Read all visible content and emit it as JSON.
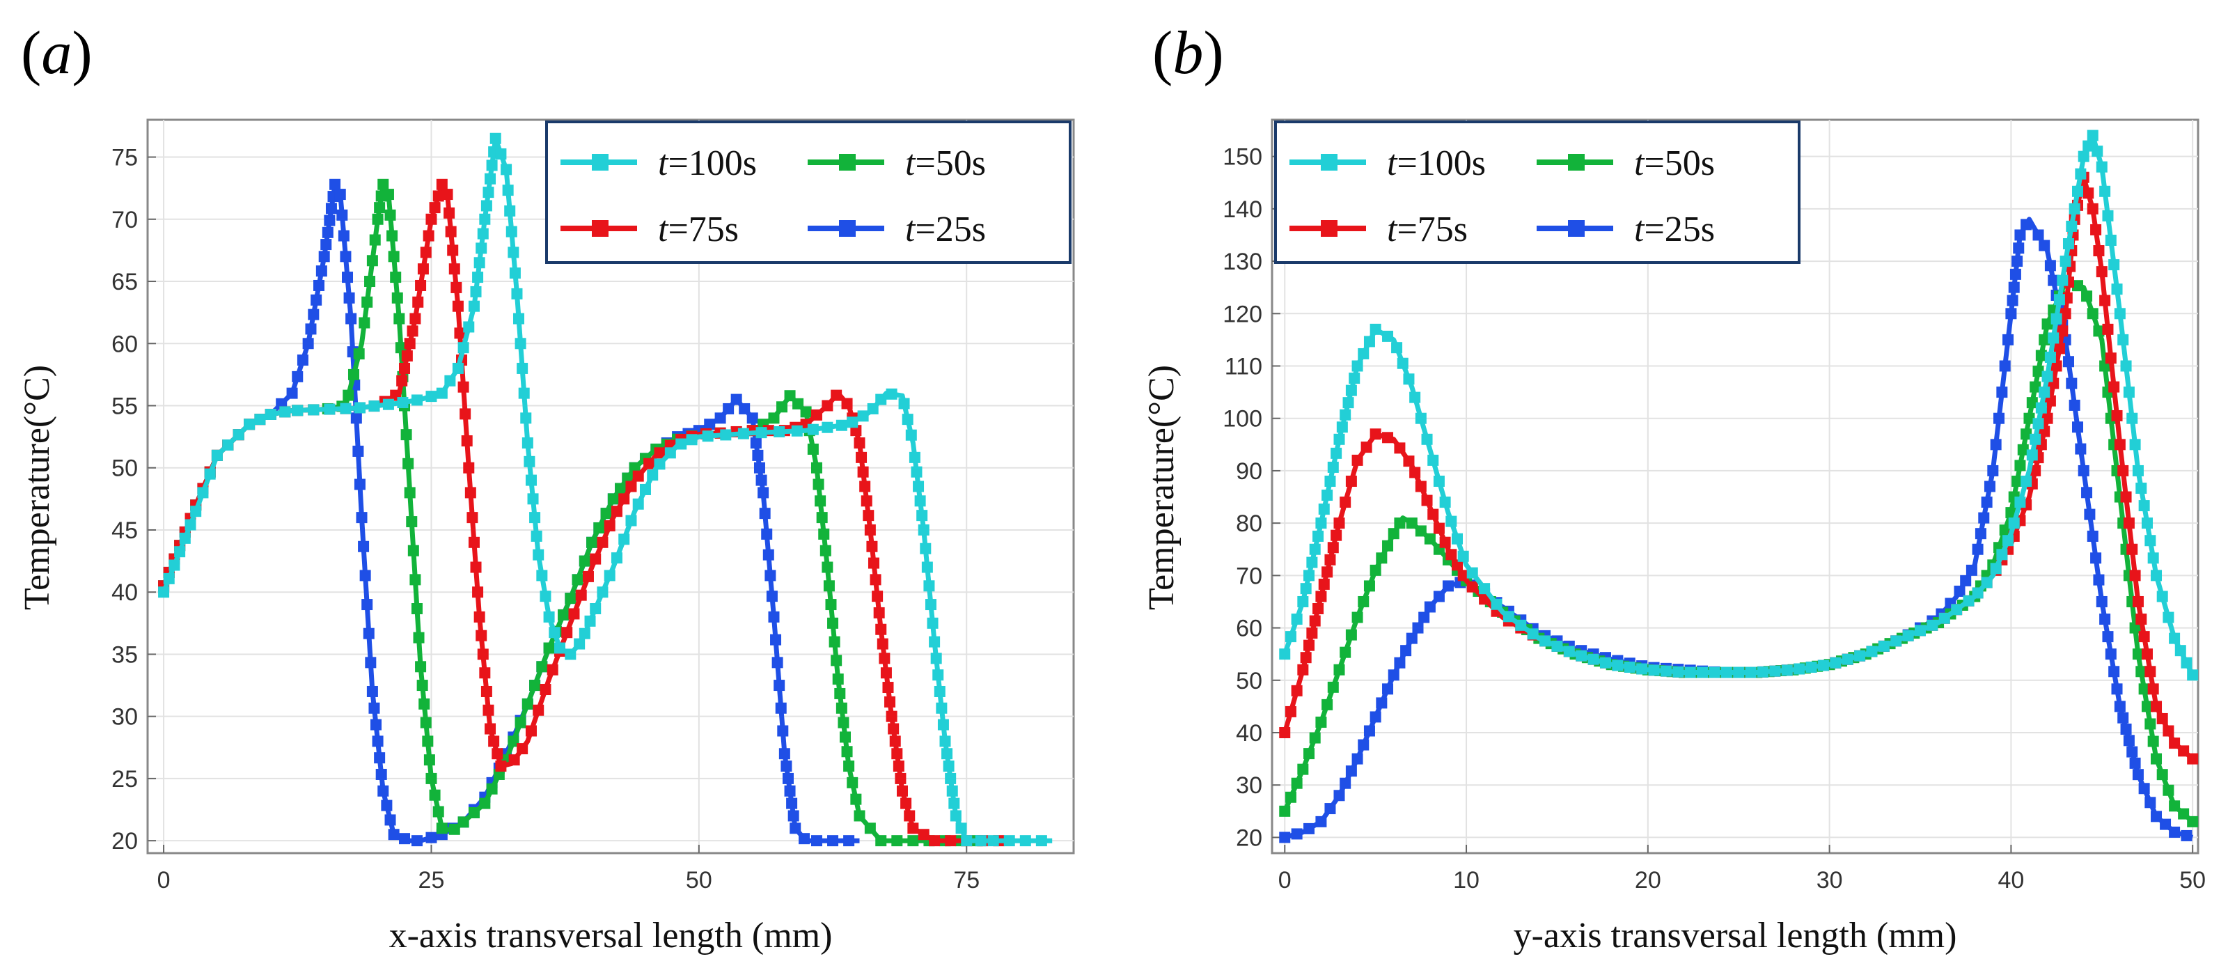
{
  "chart_data": [
    {
      "panel_label": "a",
      "type": "line",
      "xlabel": "x-axis transversal length (mm)",
      "ylabel": "Temperature(°C)",
      "xlim": [
        -1.5,
        85
      ],
      "ylim": [
        19,
        78
      ],
      "xticks": [
        0,
        25,
        50,
        75
      ],
      "yticks": [
        20,
        25,
        30,
        35,
        40,
        45,
        50,
        55,
        60,
        65,
        70,
        75
      ],
      "grid": true,
      "legend_position": "top-right",
      "legend_order": [
        "t=100s",
        "t=50s",
        "t=75s",
        "t=25s"
      ],
      "series": [
        {
          "name": "t=25s",
          "italic_prefix": "t",
          "suffix": "=25s",
          "color": "#1f4fe6",
          "x": [
            0,
            3,
            5,
            8,
            10,
            12,
            13.5,
            15,
            16,
            16.5,
            17.5,
            18.5,
            19.5,
            20.5,
            21.5,
            23,
            24,
            26,
            28,
            30,
            32,
            34,
            36,
            38,
            40,
            42,
            44,
            46,
            48,
            50,
            52,
            53.5,
            55,
            56,
            57,
            58,
            59,
            60,
            62,
            65
          ],
          "y": [
            40.5,
            47,
            51,
            53.5,
            54.3,
            56,
            60,
            67,
            72.8,
            72,
            62,
            46,
            32,
            24,
            20.5,
            20,
            20,
            20.5,
            21.5,
            23.5,
            27,
            31,
            35.5,
            39.5,
            44,
            47.5,
            50,
            51.5,
            52.5,
            53,
            54,
            55.5,
            54,
            48,
            38,
            27,
            21,
            20,
            20,
            20
          ]
        },
        {
          "name": "t=50s",
          "italic_prefix": "t",
          "suffix": "=50s",
          "color": "#12b33a",
          "x": [
            0,
            3,
            5,
            8,
            10,
            12,
            15,
            17,
            18.5,
            20,
            20.5,
            21,
            22,
            23,
            24,
            25,
            26,
            27,
            28,
            30,
            32,
            34,
            36,
            38,
            40,
            42,
            44,
            46,
            48,
            50,
            52,
            55,
            57,
            58.5,
            60,
            61,
            62,
            63,
            64,
            65,
            67,
            70,
            73,
            76
          ],
          "y": [
            40.5,
            47,
            51,
            53.5,
            54.3,
            54.6,
            54.7,
            55,
            60,
            70,
            72.8,
            72,
            62,
            48,
            34,
            25,
            21,
            20.8,
            21.5,
            23,
            26.5,
            31,
            35.5,
            39.5,
            44,
            47.5,
            50,
            51.5,
            52.3,
            52.7,
            52.8,
            53,
            54,
            55.8,
            54.5,
            50,
            42,
            33,
            26,
            22,
            20,
            20,
            20,
            20
          ]
        },
        {
          "name": "t=75s",
          "italic_prefix": "t",
          "suffix": "=75s",
          "color": "#e8141a",
          "x": [
            0,
            3,
            5,
            8,
            10,
            12,
            15,
            18,
            20,
            22,
            23.5,
            25,
            26,
            26.5,
            27.5,
            28.5,
            29.5,
            30.5,
            31.5,
            32.5,
            34,
            36,
            38,
            40,
            42,
            44,
            46,
            48,
            50,
            52,
            55,
            58,
            60,
            62,
            63,
            64,
            65,
            66,
            67,
            68,
            69,
            70,
            72,
            75,
            78
          ],
          "y": [
            40.5,
            47,
            51,
            53.5,
            54.3,
            54.6,
            54.7,
            54.8,
            55,
            56,
            62,
            70,
            72.8,
            72,
            63,
            50,
            38,
            29,
            26,
            26.2,
            28,
            33,
            37.5,
            42,
            46,
            49,
            51,
            52.2,
            52.7,
            52.8,
            53,
            53,
            53.5,
            55,
            56,
            55,
            52,
            45,
            37,
            30,
            24,
            21,
            20,
            20,
            20
          ]
        },
        {
          "name": "t=100s",
          "italic_prefix": "t",
          "suffix": "=100s",
          "color": "#22cfd6",
          "x": [
            0,
            3,
            5,
            8,
            10,
            12,
            15,
            18,
            20,
            22,
            24,
            26,
            27.5,
            29,
            30,
            31,
            32,
            33,
            34,
            35,
            36,
            37,
            38,
            39,
            40,
            42,
            44,
            46,
            48,
            50,
            55,
            60,
            64,
            66,
            67.5,
            69,
            70,
            71,
            72,
            73,
            74,
            75,
            77,
            80,
            83
          ],
          "y": [
            40,
            46.5,
            51,
            53.5,
            54.3,
            54.6,
            54.7,
            54.8,
            55,
            55.2,
            55.5,
            56,
            58,
            63,
            70,
            76.5,
            74,
            64,
            52,
            43,
            38,
            35.5,
            35,
            36,
            38,
            42,
            46.5,
            50,
            51.8,
            52.5,
            52.8,
            53,
            53.5,
            54.5,
            56,
            55.8,
            52,
            45,
            36,
            28,
            22,
            20,
            20,
            20,
            20
          ]
        }
      ]
    },
    {
      "panel_label": "b",
      "type": "line",
      "xlabel": "y-axis transversal length (mm)",
      "ylabel": "Temperature(°C)",
      "xlim": [
        -0.7,
        50.3
      ],
      "ylim": [
        17,
        157
      ],
      "xticks": [
        0,
        10,
        20,
        30,
        40,
        50
      ],
      "yticks": [
        20,
        30,
        40,
        50,
        60,
        70,
        80,
        90,
        100,
        110,
        120,
        130,
        140,
        150
      ],
      "grid": true,
      "legend_position": "top-left",
      "legend_order": [
        "t=100s",
        "t=50s",
        "t=75s",
        "t=25s"
      ],
      "series": [
        {
          "name": "t=25s",
          "italic_prefix": "t",
          "suffix": "=25s",
          "color": "#1f4fe6",
          "x": [
            0,
            1,
            2,
            3,
            4,
            5,
            6,
            7,
            8,
            9,
            10,
            12,
            14,
            16,
            18,
            20,
            22,
            24,
            26,
            28,
            30,
            32,
            34,
            36,
            37,
            38,
            39,
            40,
            40.5,
            41,
            42,
            43,
            44,
            45,
            46,
            47,
            48,
            49,
            50
          ],
          "y": [
            20,
            21,
            23,
            28,
            35,
            43,
            51,
            58,
            64,
            68,
            69,
            64,
            59,
            56,
            54,
            52.5,
            52,
            51.5,
            51.5,
            52,
            53,
            55,
            58,
            62,
            66,
            72,
            90,
            120,
            135,
            138,
            132,
            115,
            90,
            65,
            45,
            32,
            24,
            21,
            20
          ]
        },
        {
          "name": "t=50s",
          "italic_prefix": "t",
          "suffix": "=50s",
          "color": "#12b33a",
          "x": [
            0,
            1,
            2,
            3,
            4,
            5,
            6,
            6.5,
            7,
            8,
            9,
            10,
            12,
            14,
            16,
            18,
            20,
            22,
            24,
            26,
            28,
            30,
            32,
            34,
            36,
            38,
            39,
            40,
            41,
            42,
            43,
            44,
            45,
            46,
            47,
            48,
            49,
            50
          ],
          "y": [
            25,
            33,
            42,
            52,
            62,
            71,
            78,
            81,
            80,
            77,
            73,
            69,
            63,
            58,
            55,
            53,
            52,
            51.5,
            51.5,
            51.5,
            52,
            53,
            55,
            58,
            61,
            66,
            72,
            82,
            100,
            118,
            126,
            125,
            115,
            85,
            55,
            35,
            26,
            23
          ]
        },
        {
          "name": "t=75s",
          "italic_prefix": "t",
          "suffix": "=75s",
          "color": "#e8141a",
          "x": [
            0,
            1,
            2,
            3,
            4,
            5,
            6,
            7,
            8,
            9,
            10,
            12,
            14,
            16,
            18,
            20,
            22,
            24,
            26,
            28,
            30,
            32,
            34,
            36,
            38,
            39,
            40,
            41,
            42,
            43,
            43.5,
            44,
            44.5,
            45,
            46,
            47,
            48,
            49,
            50
          ],
          "y": [
            40,
            52,
            66,
            80,
            92,
            97,
            96,
            91,
            83,
            75,
            69,
            62,
            58,
            55,
            53,
            52,
            51.5,
            51.5,
            51.5,
            52,
            53,
            55,
            58,
            61,
            66,
            70,
            76,
            85,
            100,
            120,
            138,
            146,
            140,
            128,
            95,
            65,
            45,
            38,
            35
          ]
        },
        {
          "name": "t=100s",
          "italic_prefix": "t",
          "suffix": "=100s",
          "color": "#22cfd6",
          "x": [
            0,
            1,
            2,
            3,
            4,
            5,
            6,
            7,
            8,
            9,
            10,
            12,
            14,
            16,
            18,
            20,
            22,
            24,
            26,
            28,
            30,
            32,
            34,
            36,
            38,
            39,
            40,
            41,
            42,
            43,
            44,
            44.5,
            45,
            46,
            47,
            48,
            49,
            50
          ],
          "y": [
            55,
            65,
            80,
            96,
            110,
            117,
            115,
            106,
            94,
            82,
            72,
            63,
            58,
            55,
            53,
            52,
            51.5,
            51.5,
            51.5,
            52,
            53,
            55,
            58,
            61,
            66,
            70,
            78,
            90,
            108,
            130,
            150,
            154,
            148,
            120,
            90,
            70,
            58,
            51
          ]
        }
      ]
    }
  ]
}
